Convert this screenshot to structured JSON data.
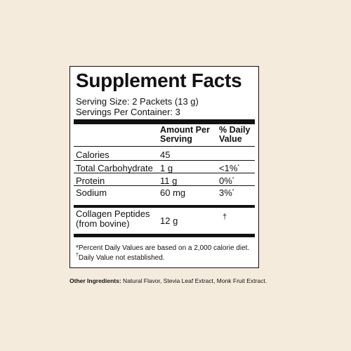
{
  "title": "Supplement Facts",
  "serving_size": "Serving Size: 2 Packets (13 g)",
  "servings_per_container": "Servings Per Container: 3",
  "headers": {
    "amount_line1": "Amount Per",
    "amount_line2": "Serving",
    "dv_line1": "% Daily",
    "dv_line2": "Value"
  },
  "rows": [
    {
      "name": "Calories",
      "amount": "45",
      "dv": ""
    },
    {
      "name": "Total Carbohydrate",
      "amount": "1 g",
      "dv": "<1%",
      "dv_mark": "*"
    },
    {
      "name": "Protein",
      "amount": "11 g",
      "dv": "0%",
      "dv_mark": "*"
    },
    {
      "name": "Sodium",
      "amount": "60 mg",
      "dv": "3%",
      "dv_mark": "*"
    }
  ],
  "collagen": {
    "name_line1": "Collagen Peptides",
    "name_line2": "(from bovine)",
    "amount": "12 g",
    "dv": "†"
  },
  "footnotes": {
    "percent": "*Percent Daily Values are based on a 2,000 calorie diet.",
    "dagger_mark": "†",
    "dagger_text": "Daily Value not established."
  },
  "other_ingredients": {
    "label": "Other Ingredients:",
    "text": " Natural Flavor, Stevia Leaf Extract, Monk Fruit Extract."
  }
}
